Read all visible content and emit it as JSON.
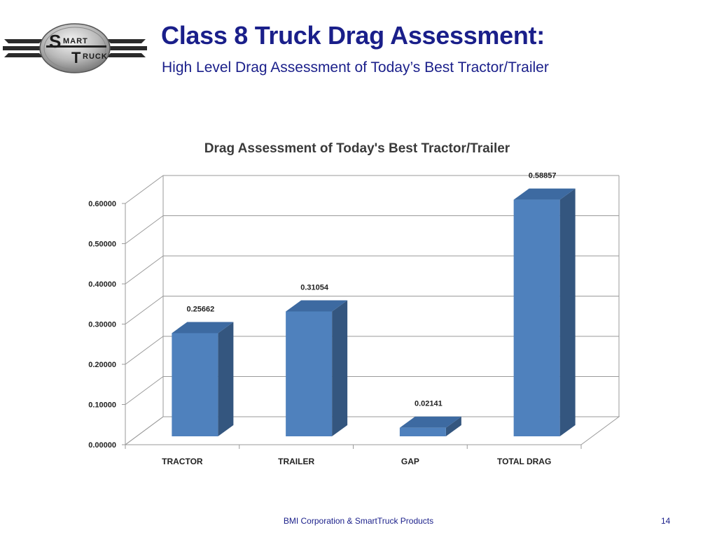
{
  "slide": {
    "title": "Class 8 Truck Drag Assessment:",
    "subtitle": "High Level Drag Assessment of Today’s Best Tractor/Trailer"
  },
  "logo": {
    "text_line1": "MART",
    "text_line2": "RUCK",
    "initial1": "S",
    "initial2": "T",
    "icon": "smarttruck-logo"
  },
  "footer": {
    "text": "BMI Corporation & SmartTruck Products",
    "page_number": "14"
  },
  "colors": {
    "title": "#1a1f8a",
    "bar_front": "#4f81bd",
    "bar_side": "#34567f",
    "bar_top": "#3d6aa1",
    "gridline": "#9a9a9a"
  },
  "chart_data": {
    "type": "bar",
    "style": "3d-column",
    "title": "Drag Assessment of Today's Best Tractor/Trailer",
    "categories": [
      "TRACTOR",
      "TRAILER",
      "GAP",
      "TOTAL DRAG"
    ],
    "values": [
      0.25662,
      0.31054,
      0.02141,
      0.58857
    ],
    "data_labels": [
      "0.25662",
      "0.31054",
      "0.02141",
      "0.58857"
    ],
    "ylim": [
      0,
      0.6
    ],
    "yticks": [
      0,
      0.1,
      0.2,
      0.3,
      0.4,
      0.5,
      0.6
    ],
    "ytick_labels": [
      "0.00000",
      "0.10000",
      "0.20000",
      "0.30000",
      "0.40000",
      "0.50000",
      "0.60000"
    ],
    "xlabel": "",
    "ylabel": "",
    "grid": true,
    "legend": "none"
  }
}
